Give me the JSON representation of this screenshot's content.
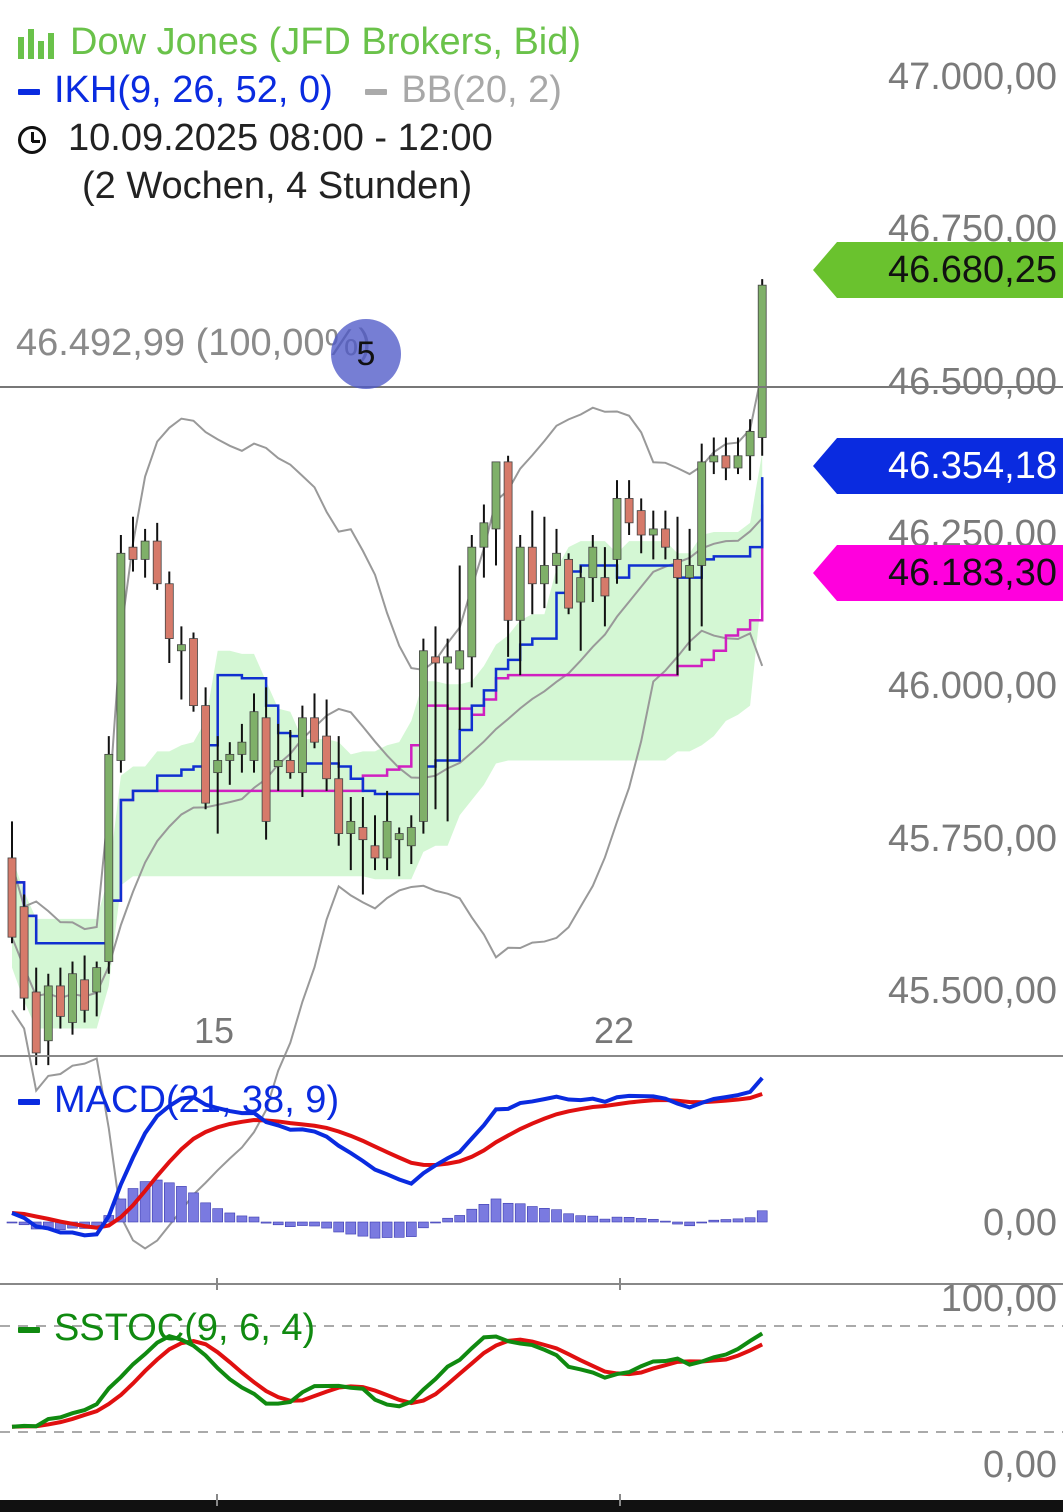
{
  "legend": {
    "instrument": "Dow Jones (JFD Brokers, Bid)",
    "ikh": "IKH(9, 26, 52, 0)",
    "bb": "BB(20, 2)",
    "period": "10.09.2025 08:00 - 12:00",
    "range": "(2 Wochen, 4 Stunden)",
    "icons": [
      "candlestick-icon",
      "clock-icon"
    ]
  },
  "colors": {
    "candle_up": "#7fb069",
    "candle_down": "#d67a6a",
    "ikh_line": "#1030d0",
    "kijun": "#d020c0",
    "cloud": "#d4f7d4",
    "bb": "#999999",
    "macd": "#0a2be0",
    "signal": "#e01010",
    "hist": "#7a7ae0",
    "stoch_k": "#108a10",
    "stoch_d": "#e01010",
    "last_price_box": "#6ac22e",
    "blue_box": "#0a2be0",
    "magenta_box": "#ff00dd"
  },
  "hline": {
    "label": "46.492,99 (100,00%)",
    "badge": "5",
    "value": 46492.99
  },
  "price_boxes": [
    {
      "label": "46.680,25",
      "value": 46680.25
    },
    {
      "label": "46.354,18",
      "value": 46354.18
    },
    {
      "label": "46.183,30",
      "value": 46183.3
    }
  ],
  "macd_panel": {
    "label": "MACD(21, 38, 9)",
    "zero_label": "0,00"
  },
  "stoch_panel": {
    "label": "SSTOC(9, 6, 4)",
    "top_label": "100,00",
    "bottom_label": "0,00"
  },
  "chart_data": {
    "type": "line",
    "x_ticks": [
      "15",
      "22"
    ],
    "y_ticks": [
      "47.000,00",
      "46.750,00",
      "46.500,00",
      "46.250,00",
      "46.000,00",
      "45.750,00",
      "45.500,00"
    ],
    "y_tick_values": [
      47000,
      46750,
      46500,
      46250,
      46000,
      45750,
      45500
    ],
    "ylim": [
      45400,
      47080
    ],
    "candles": [
      [
        45720,
        45780,
        45580,
        45590
      ],
      [
        45640,
        45660,
        45470,
        45490
      ],
      [
        45500,
        45540,
        45380,
        45400
      ],
      [
        45420,
        45530,
        45380,
        45510
      ],
      [
        45510,
        45540,
        45440,
        45460
      ],
      [
        45450,
        45550,
        45430,
        45530
      ],
      [
        45520,
        45560,
        45450,
        45470
      ],
      [
        45500,
        45550,
        45460,
        45540
      ],
      [
        45550,
        45920,
        45530,
        45890
      ],
      [
        45880,
        46250,
        45860,
        46220
      ],
      [
        46230,
        46280,
        46190,
        46210
      ],
      [
        46210,
        46260,
        46180,
        46240
      ],
      [
        46240,
        46270,
        46160,
        46170
      ],
      [
        46170,
        46190,
        46040,
        46080
      ],
      [
        46060,
        46100,
        45980,
        46070
      ],
      [
        46080,
        46090,
        45960,
        45970
      ],
      [
        45970,
        46000,
        45800,
        45810
      ],
      [
        45860,
        45920,
        45760,
        45880
      ],
      [
        45880,
        45910,
        45840,
        45890
      ],
      [
        45890,
        45940,
        45860,
        45910
      ],
      [
        45880,
        45990,
        45860,
        45960
      ],
      [
        45950,
        46000,
        45750,
        45780
      ],
      [
        45870,
        45940,
        45830,
        45880
      ],
      [
        45880,
        45930,
        45850,
        45860
      ],
      [
        45860,
        45970,
        45820,
        45950
      ],
      [
        45950,
        45990,
        45900,
        45910
      ],
      [
        45920,
        45980,
        45830,
        45850
      ],
      [
        45850,
        45920,
        45740,
        45760
      ],
      [
        45760,
        45820,
        45700,
        45780
      ],
      [
        45770,
        45820,
        45660,
        45750
      ],
      [
        45740,
        45790,
        45700,
        45720
      ],
      [
        45720,
        45830,
        45700,
        45780
      ],
      [
        45750,
        45770,
        45690,
        45760
      ],
      [
        45740,
        45790,
        45710,
        45770
      ],
      [
        45780,
        46080,
        45760,
        46060
      ],
      [
        46050,
        46100,
        45800,
        46040
      ],
      [
        46040,
        46080,
        45780,
        46050
      ],
      [
        46030,
        46200,
        45930,
        46060
      ],
      [
        46050,
        46250,
        46000,
        46230
      ],
      [
        46230,
        46300,
        46180,
        46270
      ],
      [
        46260,
        46370,
        46200,
        46370
      ],
      [
        46370,
        46380,
        46050,
        46110
      ],
      [
        46110,
        46250,
        46020,
        46230
      ],
      [
        46230,
        46290,
        46120,
        46170
      ],
      [
        46170,
        46280,
        46130,
        46200
      ],
      [
        46200,
        46260,
        46170,
        46220
      ],
      [
        46210,
        46220,
        46120,
        46130
      ],
      [
        46140,
        46200,
        46060,
        46180
      ],
      [
        46180,
        46250,
        46140,
        46230
      ],
      [
        46180,
        46230,
        46100,
        46150
      ],
      [
        46210,
        46340,
        46170,
        46310
      ],
      [
        46310,
        46340,
        46250,
        46270
      ],
      [
        46290,
        46310,
        46220,
        46250
      ],
      [
        46250,
        46290,
        46210,
        46260
      ],
      [
        46260,
        46290,
        46210,
        46230
      ],
      [
        46210,
        46280,
        46020,
        46180
      ],
      [
        46180,
        46260,
        46060,
        46200
      ],
      [
        46200,
        46400,
        46100,
        46370
      ],
      [
        46370,
        46410,
        46350,
        46380
      ],
      [
        46380,
        46410,
        46340,
        46360
      ],
      [
        46360,
        46410,
        46350,
        46380
      ],
      [
        46380,
        46440,
        46340,
        46420
      ],
      [
        46410,
        46670,
        46380,
        46660
      ]
    ]
  }
}
